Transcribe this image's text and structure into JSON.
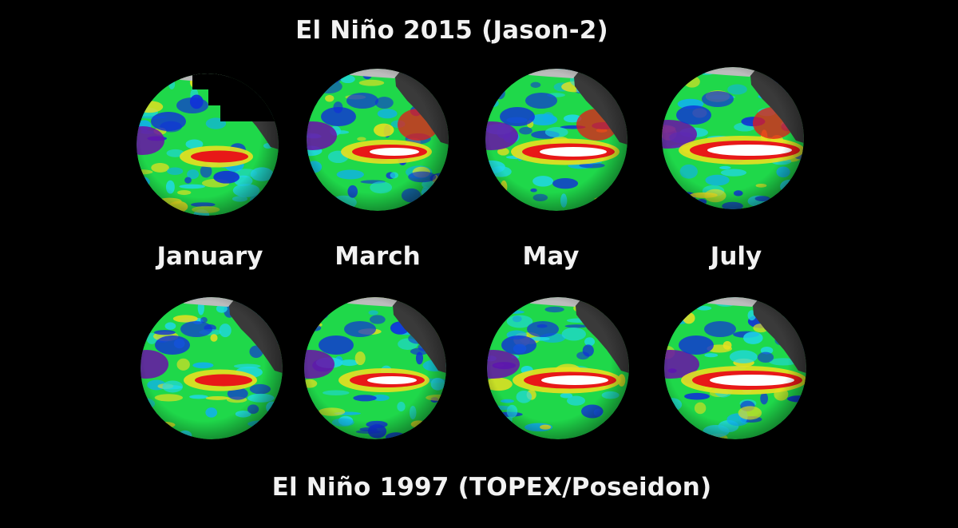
{
  "title_top": "El Niño 2015 (Jason-2)",
  "title_bottom": "El Niño 1997 (TOPEX/Poseidon)",
  "months": [
    "January",
    "March",
    "May",
    "July"
  ],
  "colors": {
    "background": "#000000",
    "ocean_base": "#1fd84a",
    "cool_anomaly": "#1030d8",
    "mild_cool": "#20d8e8",
    "warm": "#e8e020",
    "hot": "#e81818",
    "hottest": "#ffffff",
    "very_cool": "#6a10a8",
    "land": "#3a3a3a",
    "ice": "#bcbcbc"
  },
  "globes": {
    "row_2015": [
      {
        "month": "January",
        "warm_level": 1
      },
      {
        "month": "March",
        "warm_level": 2
      },
      {
        "month": "May",
        "warm_level": 3
      },
      {
        "month": "July",
        "warm_level": 4
      }
    ],
    "row_1997": [
      {
        "month": "January",
        "warm_level": 1
      },
      {
        "month": "March",
        "warm_level": 2
      },
      {
        "month": "May",
        "warm_level": 3
      },
      {
        "month": "July",
        "warm_level": 4
      }
    ]
  }
}
